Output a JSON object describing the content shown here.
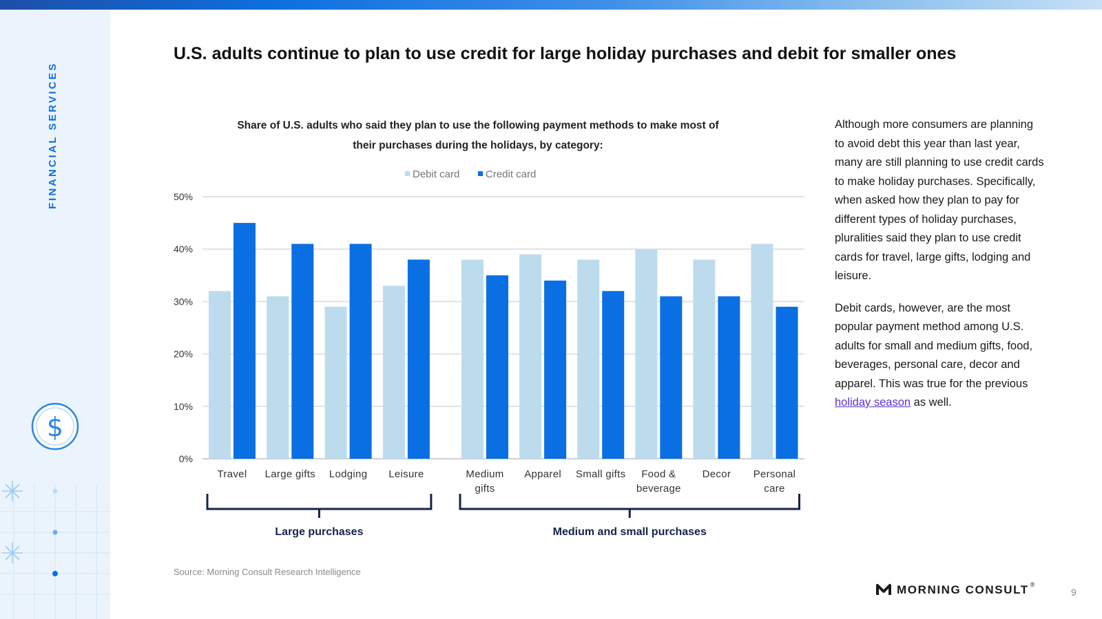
{
  "sidebar": {
    "section_label": "FINANCIAL SERVICES"
  },
  "slide": {
    "title": "U.S. adults continue to plan to use credit for large holiday purchases and debit for smaller ones",
    "source": "Source: Morning Consult Research Intelligence",
    "page_number": "9"
  },
  "side_text": {
    "para1": "Although more consumers are planning to avoid debt this year than last year, many are still planning to use credit cards to make holiday purchases. Specifically, when asked how they plan to pay for different types of holiday purchases, pluralities said they plan to use credit cards for travel, large gifts, lodging and leisure.",
    "para2_pre": "Debit cards, however, are the most popular payment method among U.S. adults for small and medium gifts, food, beverages, personal care, decor and apparel. This was true for the previous ",
    "para2_link": "holiday season",
    "para2_post": " as well."
  },
  "logo": {
    "text": "MORNING CONSULT",
    "mark": "®"
  },
  "chart_data": {
    "type": "bar",
    "title": "Share of U.S. adults who said they plan to use the following payment methods to make most of their purchases during the holidays, by category:",
    "categories": [
      "Travel",
      "Large gifts",
      "Lodging",
      "Leisure",
      "Medium gifts",
      "Apparel",
      "Small gifts",
      "Food & beverage",
      "Decor",
      "Personal care"
    ],
    "category_labels": [
      [
        "Travel"
      ],
      [
        "Large gifts"
      ],
      [
        "Lodging"
      ],
      [
        "Leisure"
      ],
      [
        "Medium",
        "gifts"
      ],
      [
        "Apparel"
      ],
      [
        "Small gifts"
      ],
      [
        "Food &",
        "beverage"
      ],
      [
        "Decor"
      ],
      [
        "Personal",
        "care"
      ]
    ],
    "series": [
      {
        "name": "Debit card",
        "color": "#bcdcee",
        "values": [
          32,
          31,
          29,
          33,
          38,
          39,
          38,
          40,
          38,
          41
        ]
      },
      {
        "name": "Credit card",
        "color": "#0a6fe3",
        "values": [
          45,
          41,
          41,
          38,
          35,
          34,
          32,
          31,
          31,
          29
        ]
      }
    ],
    "yticks": [
      "0%",
      "10%",
      "20%",
      "30%",
      "40%",
      "50%"
    ],
    "ylim": [
      0,
      50
    ],
    "grid": true,
    "legend": "top-center",
    "groups": [
      {
        "label": "Large purchases",
        "from": 0,
        "to": 3
      },
      {
        "label": "Medium and small purchases",
        "from": 4,
        "to": 9
      }
    ]
  }
}
